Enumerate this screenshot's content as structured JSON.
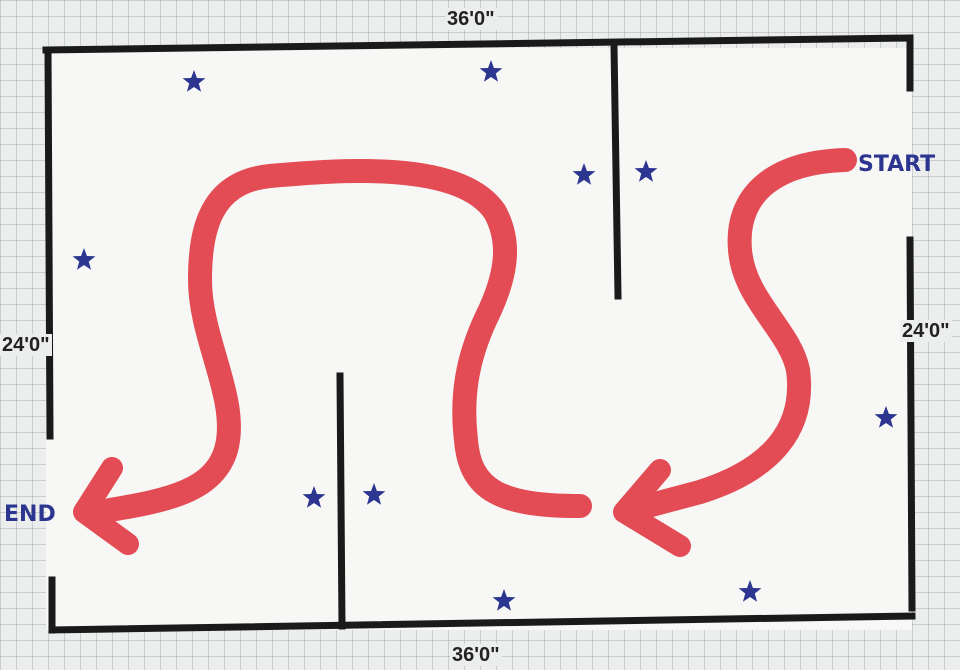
{
  "dimensions": {
    "top": "36'0\"",
    "bottom": "36'0\"",
    "left": "24'0\"",
    "right": "24'0\""
  },
  "labels": {
    "start": "START",
    "end": "END"
  },
  "colors": {
    "wall": "#1a1a1a",
    "path": "#e34c54",
    "star": "#2c3590",
    "label": "#2c3590",
    "floor": "#f7f7f6"
  },
  "icons": {
    "marker": "star-icon",
    "direction": "arrow-icon"
  }
}
